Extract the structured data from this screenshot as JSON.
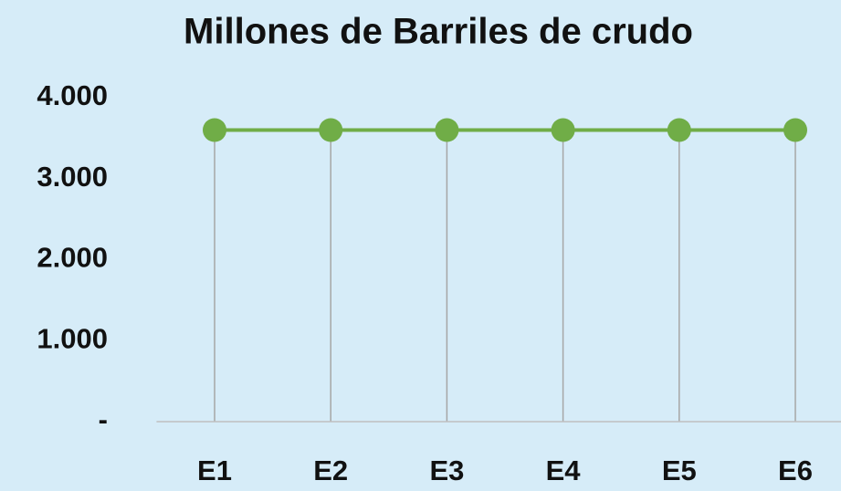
{
  "chart_data": {
    "type": "line",
    "title": "Millones de Barriles de crudo",
    "categories": [
      "E1",
      "E2",
      "E3",
      "E4",
      "E5",
      "E6"
    ],
    "series": [
      {
        "name": "Millones de Barriles de crudo",
        "color": "#70ad47",
        "values": [
          3600,
          3600,
          3600,
          3600,
          3600,
          3600
        ]
      }
    ],
    "ylim": [
      0,
      4000
    ],
    "yticks": [
      {
        "value": 0,
        "label": "-"
      },
      {
        "value": 1000,
        "label": "1.000"
      },
      {
        "value": 2000,
        "label": "2.000"
      },
      {
        "value": 3000,
        "label": "3.000"
      },
      {
        "value": 4000,
        "label": "4.000"
      }
    ],
    "drop_lines": true,
    "grid": false,
    "legend": false
  }
}
